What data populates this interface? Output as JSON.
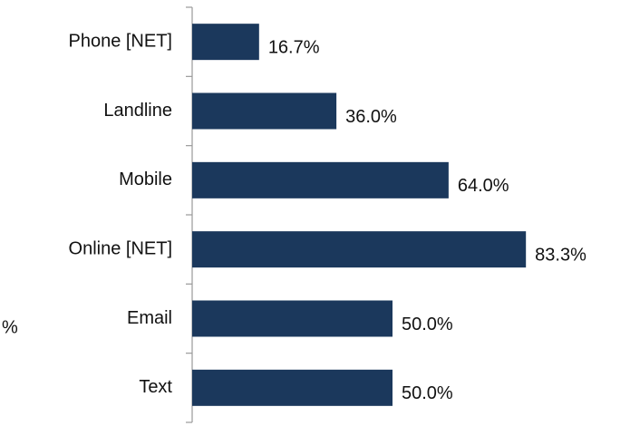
{
  "chart_data": {
    "type": "barh",
    "axis_label": "%",
    "categories": [
      "Phone [NET]",
      "Landline",
      "Mobile",
      "Online [NET]",
      "Email",
      "Text"
    ],
    "values": [
      16.7,
      36.0,
      64.0,
      83.3,
      50.0,
      50.0
    ],
    "value_labels": [
      "16.7%",
      "36.0%",
      "64.0%",
      "83.3%",
      "50.0%",
      "50.0%"
    ],
    "color": "#1b385c",
    "xlim": [
      0,
      100
    ]
  }
}
